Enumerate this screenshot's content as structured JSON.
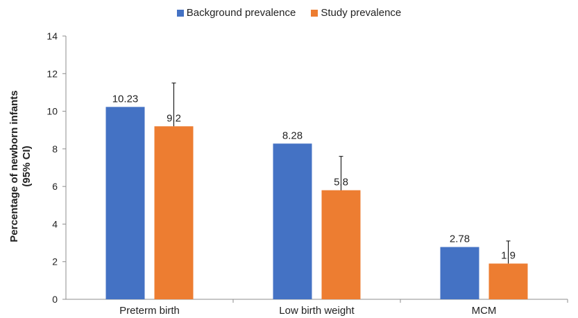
{
  "chart_data": {
    "type": "bar",
    "categories": [
      "Preterm birth",
      "Low birth weight",
      "MCM"
    ],
    "series": [
      {
        "name": "Background prevalence",
        "values": [
          10.23,
          8.28,
          2.78
        ],
        "labels": [
          "10.23",
          "8.28",
          "2.78"
        ],
        "color": "#4472C4"
      },
      {
        "name": "Study prevalence",
        "values": [
          9.2,
          5.8,
          1.9
        ],
        "labels": [
          "9.2",
          "5.8",
          "1.9"
        ],
        "upper_ci": [
          11.5,
          7.6,
          3.1
        ],
        "color": "#ED7D31"
      }
    ],
    "ylabel_line1": "Percentage of newborn infants",
    "ylabel_line2": "(95% CI)",
    "ylim": [
      0,
      14
    ],
    "yticks": [
      0,
      2,
      4,
      6,
      8,
      10,
      12,
      14
    ],
    "legend_position": "top-center",
    "grid": false
  }
}
